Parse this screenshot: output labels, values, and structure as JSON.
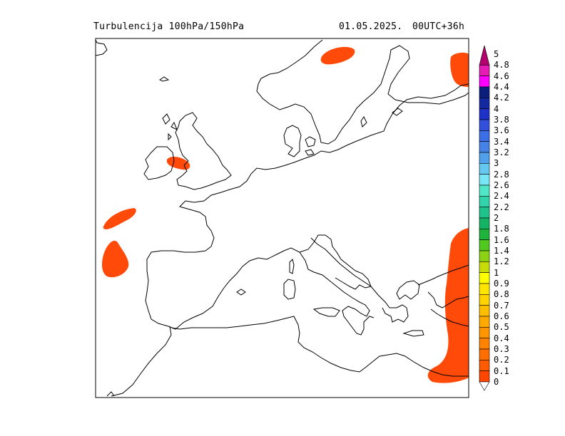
{
  "header": {
    "title": "Turbulencija 100hPa/150hPa",
    "date": "01.05.2025.",
    "run": "00UTC+36h"
  },
  "colorbar": {
    "levels": [
      "5",
      "4.8",
      "4.6",
      "4.4",
      "4.2",
      "4",
      "3.8",
      "3.6",
      "3.4",
      "3.2",
      "3",
      "2.8",
      "2.6",
      "2.4",
      "2.2",
      "2",
      "1.8",
      "1.6",
      "1.4",
      "1.2",
      "1",
      "0.9",
      "0.8",
      "0.7",
      "0.6",
      "0.5",
      "0.4",
      "0.3",
      "0.2",
      "0.1",
      "0"
    ],
    "colors": [
      "#b4006e",
      "#e61cb4",
      "#ff00ff",
      "#0a1e7a",
      "#1428a0",
      "#1e32c8",
      "#3250dc",
      "#3c6ee6",
      "#4682e6",
      "#50a0eb",
      "#64c8f0",
      "#78e6f5",
      "#50e6c8",
      "#32d2aa",
      "#1ec38c",
      "#14b464",
      "#1eb43c",
      "#50c81e",
      "#8cd214",
      "#c8dc0a",
      "#ffff00",
      "#ffe600",
      "#ffd200",
      "#ffbe00",
      "#ffaa00",
      "#ff9600",
      "#ff8200",
      "#ff6e00",
      "#ff5a00",
      "#ff4600"
    ]
  },
  "turbulence_color": "#ff4a0a"
}
